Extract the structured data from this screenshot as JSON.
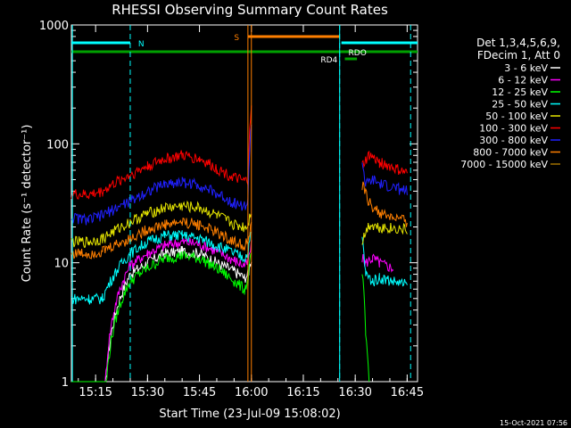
{
  "chart_data": {
    "type": "line",
    "title": "RHESSI Observing Summary Count Rates",
    "xlabel": "Start Time (23-Jul-09 15:08:02)",
    "ylabel": "Count Rate (s⁻¹ detector⁻¹)",
    "yscale": "log",
    "ylim": [
      1,
      1000
    ],
    "xlim_minutes_after_1508": [
      0,
      100
    ],
    "x_ticks": [
      "15:15",
      "15:30",
      "15:45",
      "16:00",
      "16:15",
      "16:30",
      "16:45"
    ],
    "y_ticks": [
      "1",
      "10",
      "100",
      "1000"
    ],
    "legend_header": [
      "Det 1,3,4,5,6,9,",
      "FDecim 1, Att 0"
    ],
    "legend_position": "right",
    "footer_date": "15-Oct-2021 07:56",
    "series": [
      {
        "name": "3 - 6 keV",
        "color": "#ffffff",
        "x": [
          "15:08",
          "15:13",
          "15:17",
          "15:25",
          "15:30",
          "15:35",
          "15:40",
          "15:45",
          "15:50",
          "15:55",
          "15:58",
          "15:59",
          "16:00"
        ],
        "y": [
          0,
          0,
          0,
          8,
          10,
          12,
          12.5,
          12,
          10,
          8.5,
          7.5,
          8,
          11
        ]
      },
      {
        "name": "6 - 12 keV",
        "color": "#ff00ff",
        "x": [
          "15:08",
          "15:13",
          "15:17",
          "15:25",
          "15:30",
          "15:35",
          "15:40",
          "15:45",
          "15:50",
          "15:55",
          "15:58",
          "15:59",
          "16:00",
          "16:32",
          "16:33",
          "16:35",
          "16:37",
          "16:41"
        ],
        "y": [
          0,
          0,
          0,
          9.5,
          12,
          14,
          15,
          14.5,
          12.5,
          10.5,
          9.5,
          10,
          14,
          11,
          10,
          11,
          10,
          9
        ]
      },
      {
        "name": "12 - 25 keV",
        "color": "#00ff00",
        "x": [
          "15:08",
          "15:13",
          "15:17",
          "15:25",
          "15:30",
          "15:35",
          "15:40",
          "15:45",
          "15:50",
          "15:55",
          "15:58",
          "15:59",
          "16:00",
          "16:32",
          "16:33",
          "16:34"
        ],
        "y": [
          0,
          0,
          0,
          7,
          9,
          11,
          11.5,
          11,
          9,
          7,
          6,
          7,
          12,
          8,
          2.5,
          1
        ]
      },
      {
        "name": "25 - 50 keV",
        "color": "#00ffff",
        "x": [
          "15:08",
          "15:13",
          "15:17",
          "15:25",
          "15:30",
          "15:35",
          "15:40",
          "15:45",
          "15:50",
          "15:55",
          "15:58",
          "15:59",
          "16:00",
          "16:32",
          "16:33",
          "16:35",
          "16:37",
          "16:45"
        ],
        "y": [
          5,
          5,
          5,
          12,
          15,
          17,
          17,
          16,
          14,
          12,
          11,
          12,
          18,
          16,
          8,
          7,
          7.5,
          6.5
        ]
      },
      {
        "name": "50 - 100 keV",
        "color": "#e5e500",
        "x": [
          "15:08",
          "15:13",
          "15:17",
          "15:25",
          "15:30",
          "15:35",
          "15:40",
          "15:45",
          "15:50",
          "15:55",
          "15:58",
          "15:59",
          "16:00",
          "16:32",
          "16:34",
          "16:37",
          "16:45"
        ],
        "y": [
          15,
          15,
          16,
          22,
          26,
          29,
          30,
          29,
          25,
          21,
          20,
          21,
          28,
          15,
          21,
          20,
          19
        ]
      },
      {
        "name": "100 - 300 keV",
        "color": "#ff0000",
        "x": [
          "15:08",
          "15:13",
          "15:17",
          "15:25",
          "15:30",
          "15:35",
          "15:40",
          "15:45",
          "15:50",
          "15:55",
          "15:58",
          "15:59",
          "16:00",
          "16:32",
          "16:34",
          "16:37",
          "16:45"
        ],
        "y": [
          38,
          37,
          40,
          55,
          65,
          75,
          80,
          75,
          62,
          52,
          48,
          50,
          200,
          65,
          80,
          70,
          56
        ]
      },
      {
        "name": "300 - 800 keV",
        "color": "#2020ff",
        "x": [
          "15:08",
          "15:13",
          "15:17",
          "15:25",
          "15:30",
          "15:35",
          "15:40",
          "15:45",
          "15:50",
          "15:55",
          "15:58",
          "15:59",
          "16:00",
          "16:32",
          "16:33",
          "16:35",
          "16:37",
          "16:45"
        ],
        "y": [
          24,
          23,
          25,
          33,
          40,
          46,
          48,
          45,
          38,
          32,
          30,
          32,
          150,
          70,
          45,
          50,
          46,
          40
        ]
      },
      {
        "name": "800 - 7000 keV",
        "color": "#ff7f00",
        "x": [
          "15:08",
          "15:13",
          "15:17",
          "15:25",
          "15:30",
          "15:35",
          "15:40",
          "15:45",
          "15:50",
          "15:55",
          "15:58",
          "15:59",
          "16:00",
          "16:32",
          "16:34",
          "16:37",
          "16:45"
        ],
        "y": [
          12,
          12,
          12.5,
          16,
          19,
          21,
          22,
          21,
          18,
          15,
          14,
          15,
          20,
          45,
          32,
          26,
          22
        ]
      },
      {
        "name": "7000 - 15000 keV",
        "color": "#a07000",
        "x": [],
        "y": []
      }
    ],
    "annotations": [
      {
        "text": "N",
        "color": "#00ffff"
      },
      {
        "text": "S",
        "color": "#ff7f00"
      },
      {
        "text": "RD4",
        "color": "#ffffff"
      },
      {
        "text": "RDO",
        "color": "#ffffff"
      }
    ]
  }
}
